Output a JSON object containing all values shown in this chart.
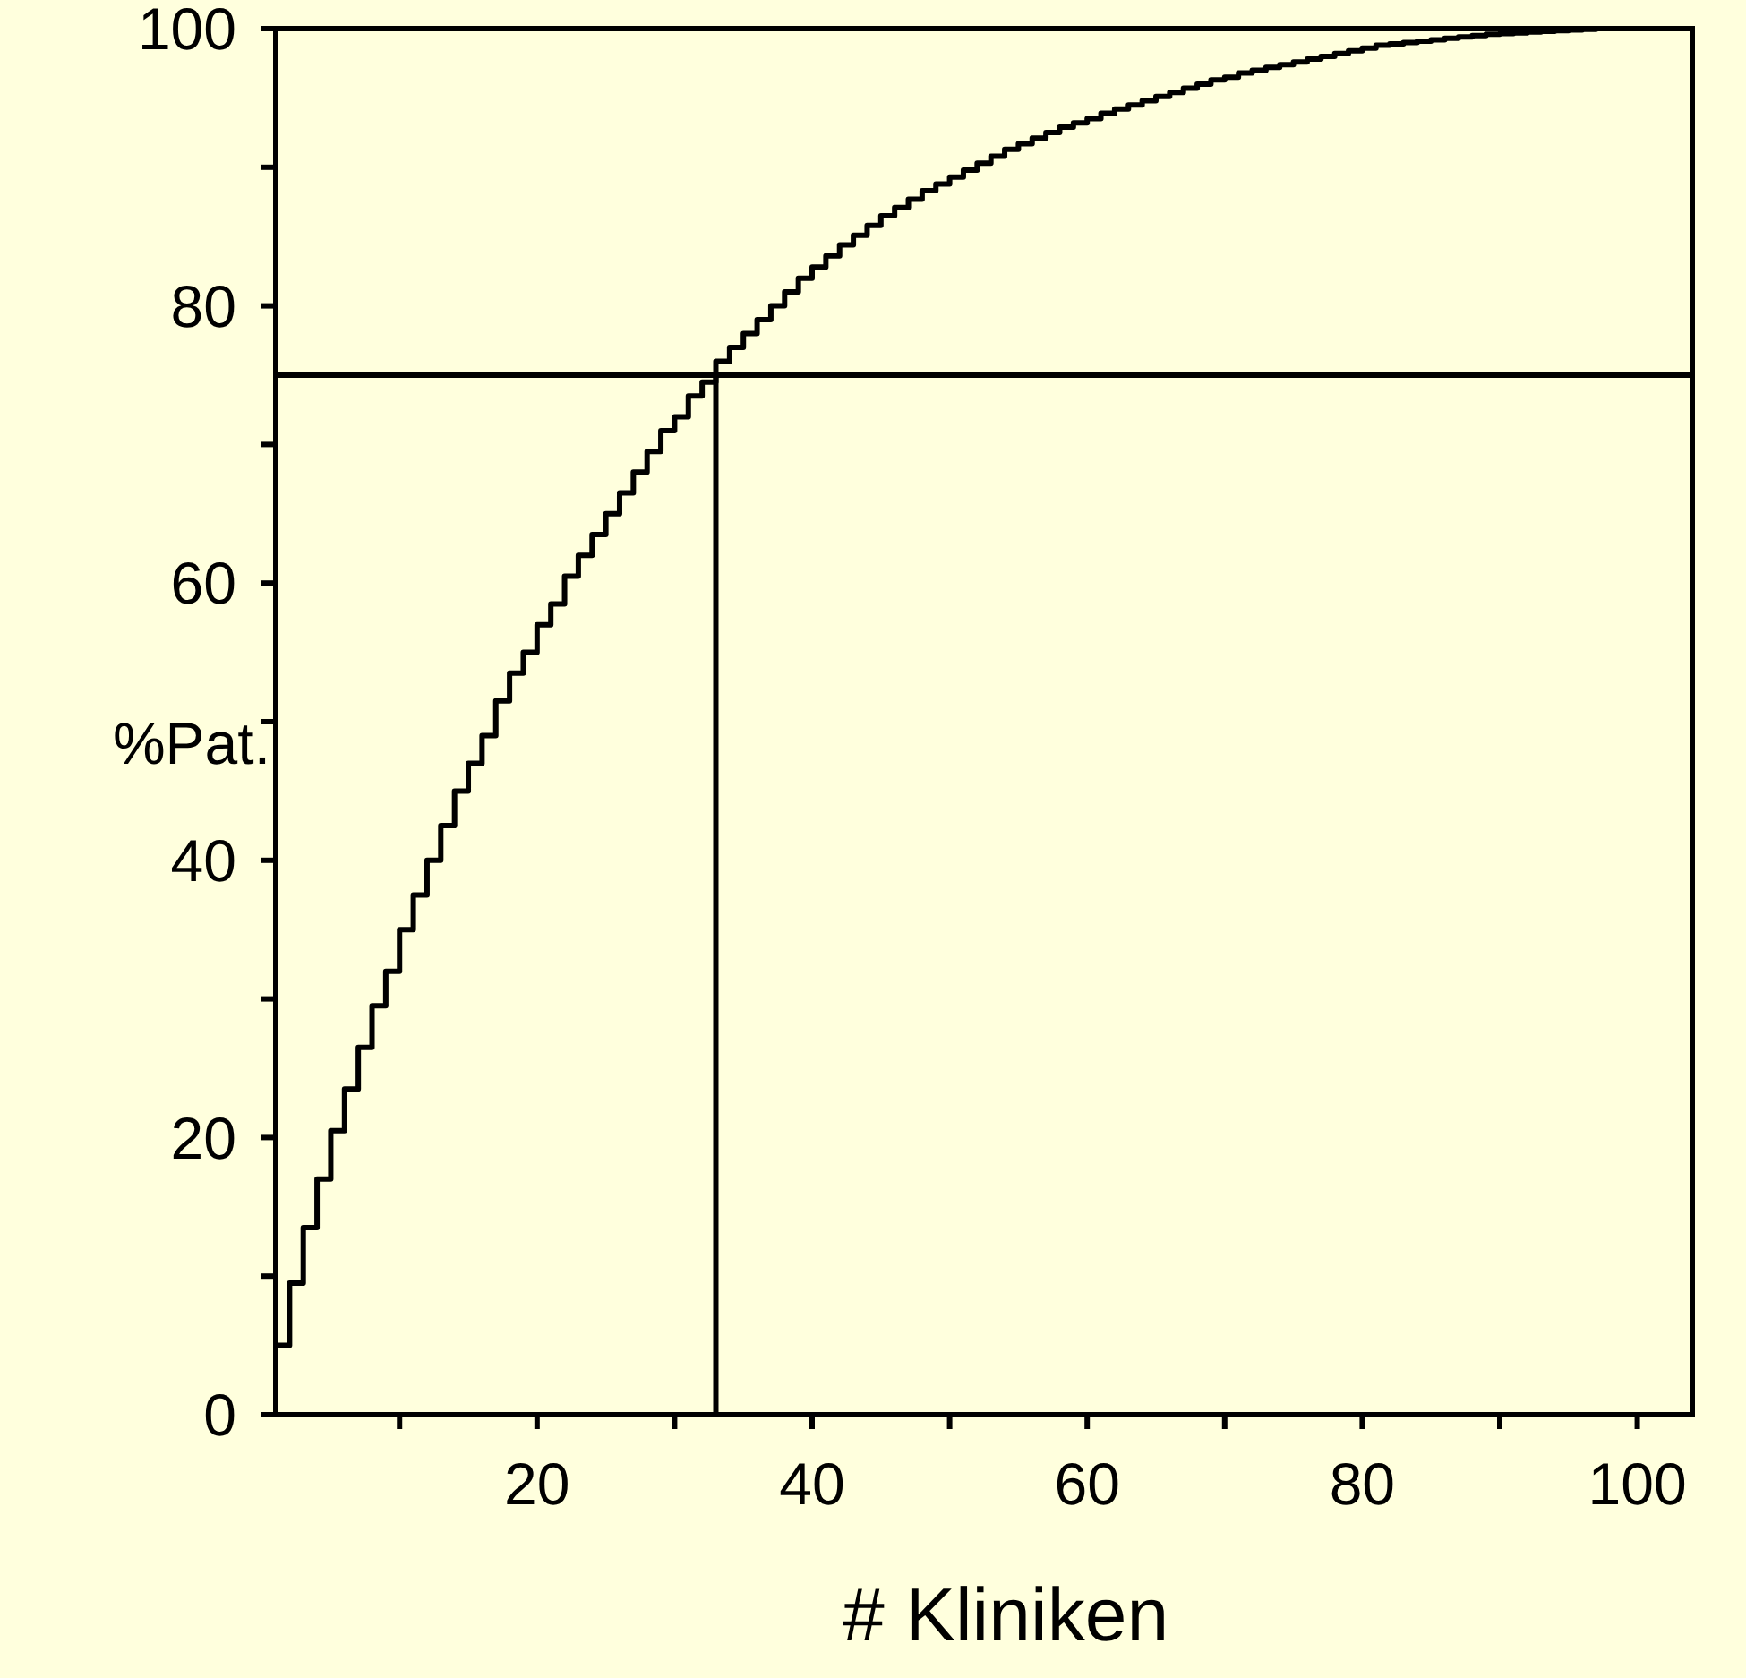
{
  "chart_data": {
    "type": "step",
    "xlabel": "# Kliniken",
    "ylabel": "%Pat.",
    "xlim": [
      1,
      104
    ],
    "ylim": [
      0,
      100
    ],
    "xticks": [
      {
        "value": 10,
        "label": null
      },
      20,
      {
        "value": 30,
        "label": null
      },
      40,
      {
        "value": 50,
        "label": null
      },
      60,
      {
        "value": 70,
        "label": null
      },
      80,
      {
        "value": 90,
        "label": null
      },
      100
    ],
    "yticks": [
      0,
      {
        "value": 10,
        "label": null
      },
      20,
      {
        "value": 30,
        "label": null
      },
      40,
      {
        "value": 50,
        "label": null
      },
      60,
      {
        "value": 70,
        "label": null
      },
      80,
      {
        "value": 90,
        "label": null
      },
      100
    ],
    "grid": false,
    "ref_lines": [
      {
        "axis": "y",
        "value": 75,
        "color": "#000000"
      },
      {
        "axis": "x",
        "value": 33,
        "color": "#000000"
      }
    ],
    "x": [
      1,
      2,
      3,
      4,
      5,
      6,
      7,
      8,
      9,
      10,
      11,
      12,
      13,
      14,
      15,
      16,
      17,
      18,
      19,
      20,
      21,
      22,
      23,
      24,
      25,
      26,
      27,
      28,
      29,
      30,
      31,
      32,
      33,
      34,
      35,
      36,
      37,
      38,
      39,
      40,
      41,
      42,
      43,
      44,
      45,
      46,
      47,
      48,
      49,
      50,
      51,
      52,
      53,
      54,
      55,
      56,
      57,
      58,
      59,
      60,
      61,
      62,
      63,
      64,
      65,
      66,
      67,
      68,
      69,
      70,
      71,
      72,
      73,
      74,
      75,
      76,
      77,
      78,
      79,
      80,
      81,
      82,
      83,
      84,
      85,
      86,
      87,
      88,
      89,
      90,
      91,
      92,
      93,
      94,
      95,
      96,
      97,
      98,
      99,
      100,
      101,
      102,
      103,
      104
    ],
    "series": [
      {
        "color": "#000000",
        "values": [
          5,
          9.5,
          13.5,
          17,
          20.5,
          23.5,
          26.5,
          29.5,
          32,
          35,
          37.5,
          40,
          42.5,
          45,
          47,
          49,
          51.5,
          53.5,
          55,
          57,
          58.5,
          60.5,
          62,
          63.5,
          65,
          66.5,
          68,
          69.5,
          71,
          72,
          73.5,
          74.5,
          76,
          77,
          78,
          79,
          80,
          81,
          82,
          82.8,
          83.6,
          84.4,
          85.1,
          85.8,
          86.5,
          87.1,
          87.7,
          88.3,
          88.8,
          89.3,
          89.8,
          90.3,
          90.8,
          91.3,
          91.7,
          92.1,
          92.5,
          92.9,
          93.2,
          93.5,
          93.9,
          94.2,
          94.5,
          94.8,
          95.1,
          95.4,
          95.7,
          96,
          96.3,
          96.5,
          96.8,
          97,
          97.2,
          97.4,
          97.6,
          97.8,
          98,
          98.2,
          98.4,
          98.6,
          98.8,
          98.9,
          99,
          99.1,
          99.2,
          99.3,
          99.4,
          99.5,
          99.6,
          99.65,
          99.7,
          99.75,
          99.8,
          99.85,
          99.9,
          99.95,
          100,
          100,
          100,
          100,
          100,
          100,
          100,
          100
        ]
      }
    ]
  }
}
